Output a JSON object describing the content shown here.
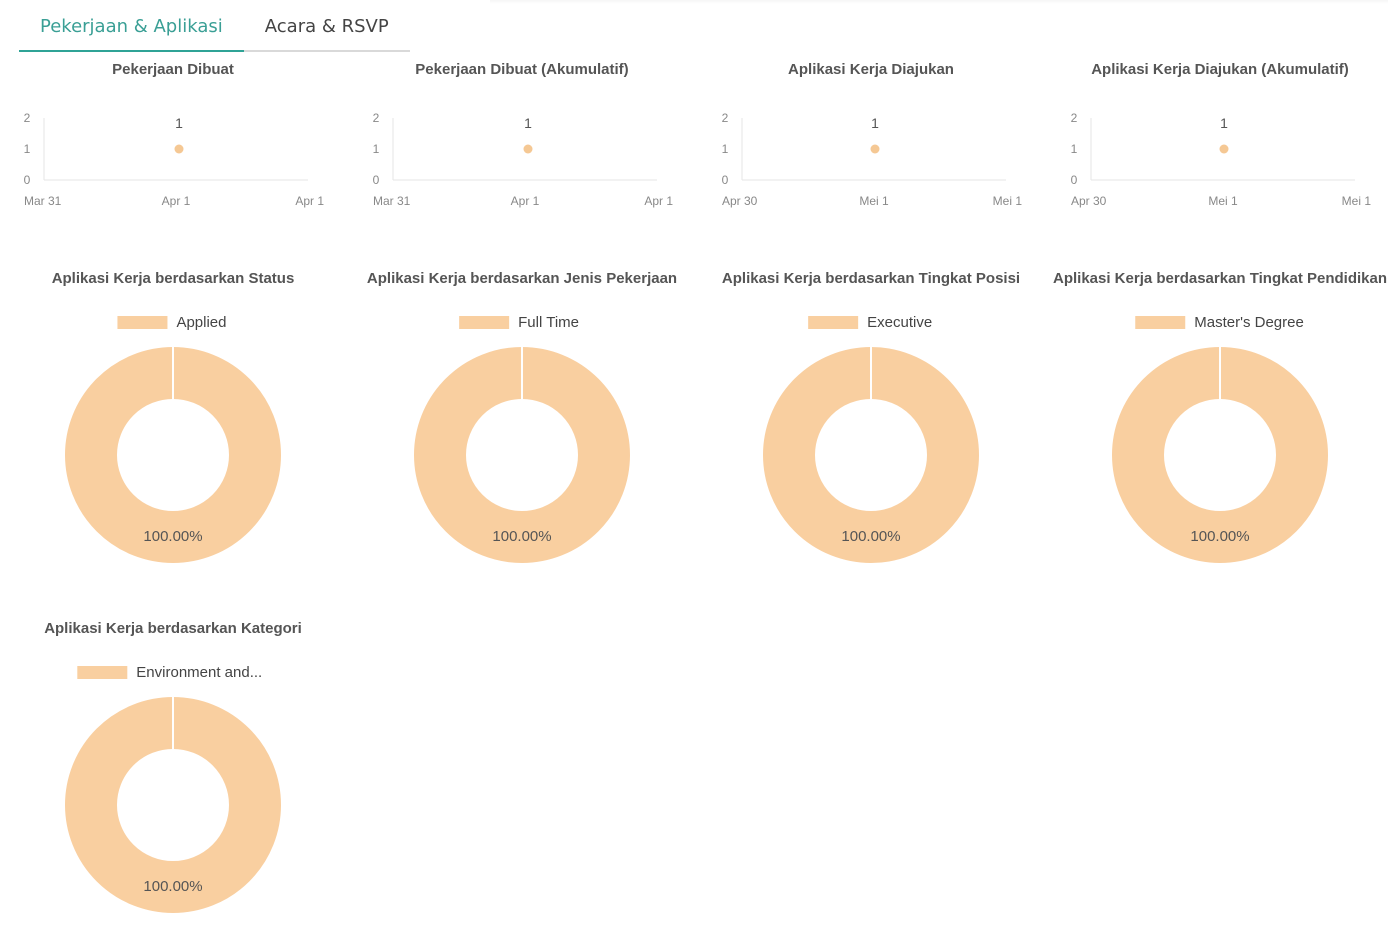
{
  "tabs": [
    {
      "label": "Pekerjaan & Aplikasi",
      "active": true
    },
    {
      "label": "Acara & RSVP",
      "active": false
    }
  ],
  "colors": {
    "accent": "#2fa396",
    "series": "#f9cfa0",
    "point": "#f5c894",
    "axis": "#e6e6e6"
  },
  "chart_data": [
    {
      "type": "line",
      "title": "Pekerjaan Dibuat",
      "x_ticks": [
        "Mar 31",
        "Apr 1",
        "Apr 1"
      ],
      "y_ticks": [
        "0",
        "1",
        "2"
      ],
      "ylim": [
        0,
        2
      ],
      "points": [
        {
          "x": "Apr 1",
          "y": 1,
          "label": "1"
        }
      ]
    },
    {
      "type": "line",
      "title": "Pekerjaan Dibuat (Akumulatif)",
      "x_ticks": [
        "Mar 31",
        "Apr 1",
        "Apr 1"
      ],
      "y_ticks": [
        "0",
        "1",
        "2"
      ],
      "ylim": [
        0,
        2
      ],
      "points": [
        {
          "x": "Apr 1",
          "y": 1,
          "label": "1"
        }
      ]
    },
    {
      "type": "line",
      "title": "Aplikasi Kerja Diajukan",
      "x_ticks": [
        "Apr 30",
        "Mei 1",
        "Mei 1"
      ],
      "y_ticks": [
        "0",
        "1",
        "2"
      ],
      "ylim": [
        0,
        2
      ],
      "points": [
        {
          "x": "Mei 1",
          "y": 1,
          "label": "1"
        }
      ]
    },
    {
      "type": "line",
      "title": "Aplikasi Kerja Diajukan (Akumulatif)",
      "x_ticks": [
        "Apr 30",
        "Mei 1",
        "Mei 1"
      ],
      "y_ticks": [
        "0",
        "1",
        "2"
      ],
      "ylim": [
        0,
        2
      ],
      "points": [
        {
          "x": "Mei 1",
          "y": 1,
          "label": "1"
        }
      ]
    },
    {
      "type": "pie",
      "donut": true,
      "title": "Aplikasi Kerja berdasarkan Status",
      "slices": [
        {
          "label": "Applied",
          "value": 100,
          "display": "100.00%"
        }
      ],
      "legend": "top"
    },
    {
      "type": "pie",
      "donut": true,
      "title": "Aplikasi Kerja berdasarkan Jenis Pekerjaan",
      "slices": [
        {
          "label": "Full Time",
          "value": 100,
          "display": "100.00%"
        }
      ],
      "legend": "top"
    },
    {
      "type": "pie",
      "donut": true,
      "title": "Aplikasi Kerja berdasarkan Tingkat Posisi",
      "slices": [
        {
          "label": "Executive",
          "value": 100,
          "display": "100.00%"
        }
      ],
      "legend": "top"
    },
    {
      "type": "pie",
      "donut": true,
      "title": "Aplikasi Kerja berdasarkan Tingkat Pendidikan",
      "slices": [
        {
          "label": "Master's Degree",
          "value": 100,
          "display": "100.00%"
        }
      ],
      "legend": "top"
    },
    {
      "type": "pie",
      "donut": true,
      "title": "Aplikasi Kerja berdasarkan Kategori",
      "slices": [
        {
          "label": "Environment and...",
          "value": 100,
          "display": "100.00%"
        }
      ],
      "legend": "top"
    }
  ]
}
